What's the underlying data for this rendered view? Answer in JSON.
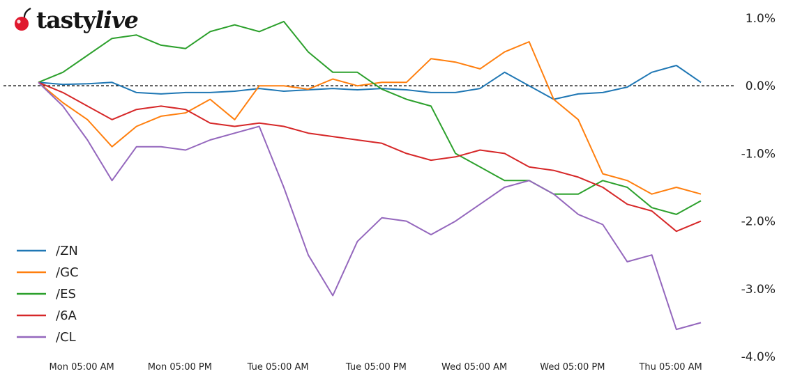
{
  "logo": {
    "brand_prefix": "tasty",
    "brand_suffix": "live"
  },
  "chart_data": {
    "type": "line",
    "title": "",
    "xlabel": "",
    "ylabel": "",
    "y_unit": "%",
    "ylim": [
      -4.0,
      1.0
    ],
    "yticks": [
      "1.0%",
      "0.0%",
      "-1.0%",
      "-2.0%",
      "-3.0%",
      "-4.0%"
    ],
    "ytick_values": [
      1.0,
      0.0,
      -1.0,
      -2.0,
      -3.0,
      -4.0
    ],
    "x_hours": [
      0,
      3,
      6,
      9,
      12,
      15,
      18,
      21,
      24,
      27,
      30,
      33,
      36,
      39,
      42,
      45,
      48,
      51,
      54,
      57,
      60,
      63,
      66,
      69,
      72,
      75,
      78,
      81
    ],
    "xticks": [
      "Mon 05:00 AM",
      "Mon 05:00 PM",
      "Tue 05:00 AM",
      "Tue 05:00 PM",
      "Wed 05:00 AM",
      "Wed 05:00 PM",
      "Thu 05:00 AM"
    ],
    "xtick_hours": [
      0,
      12,
      24,
      36,
      48,
      60,
      72
    ],
    "reference_line": {
      "value": 0.0,
      "style": "dashed",
      "color": "#000000"
    },
    "legend_position": "lower-left",
    "grid": false,
    "series": [
      {
        "name": "/ZN",
        "color": "#1f77b4",
        "values": [
          0.05,
          0.02,
          0.03,
          0.05,
          -0.1,
          -0.12,
          -0.1,
          -0.1,
          -0.08,
          -0.04,
          -0.08,
          -0.06,
          -0.04,
          -0.06,
          -0.04,
          -0.06,
          -0.1,
          -0.1,
          -0.04,
          0.2,
          0.0,
          -0.2,
          -0.12,
          -0.1,
          -0.02,
          0.2,
          0.3,
          0.05
        ]
      },
      {
        "name": "/GC",
        "color": "#ff7f0e",
        "values": [
          0.05,
          -0.25,
          -0.5,
          -0.9,
          -0.6,
          -0.45,
          -0.4,
          -0.2,
          -0.5,
          0.0,
          0.0,
          -0.05,
          0.1,
          0.0,
          0.05,
          0.05,
          0.4,
          0.35,
          0.25,
          0.5,
          0.65,
          -0.2,
          -0.5,
          -1.3,
          -1.4,
          -1.6,
          -1.5,
          -1.6
        ]
      },
      {
        "name": "/ES",
        "color": "#2ca02c",
        "values": [
          0.05,
          0.2,
          0.45,
          0.7,
          0.75,
          0.6,
          0.55,
          0.8,
          0.9,
          0.8,
          0.95,
          0.5,
          0.2,
          0.2,
          -0.05,
          -0.2,
          -0.3,
          -1.0,
          -1.2,
          -1.4,
          -1.4,
          -1.6,
          -1.6,
          -1.4,
          -1.5,
          -1.8,
          -1.9,
          -1.7
        ]
      },
      {
        "name": "/6A",
        "color": "#d62728",
        "values": [
          0.05,
          -0.1,
          -0.3,
          -0.5,
          -0.35,
          -0.3,
          -0.35,
          -0.55,
          -0.6,
          -0.55,
          -0.6,
          -0.7,
          -0.75,
          -0.8,
          -0.85,
          -1.0,
          -1.1,
          -1.05,
          -0.95,
          -1.0,
          -1.2,
          -1.25,
          -1.35,
          -1.5,
          -1.75,
          -1.85,
          -2.15,
          -2.0
        ]
      },
      {
        "name": "/CL",
        "color": "#9467bd",
        "values": [
          0.05,
          -0.3,
          -0.8,
          -1.4,
          -0.9,
          -0.9,
          -0.95,
          -0.8,
          -0.7,
          -0.6,
          -1.5,
          -2.5,
          -3.1,
          -2.3,
          -1.95,
          -2.0,
          -2.2,
          -2.0,
          -1.75,
          -1.5,
          -1.4,
          -1.6,
          -1.9,
          -2.05,
          -2.6,
          -2.5,
          -3.6,
          -3.5
        ]
      }
    ]
  }
}
